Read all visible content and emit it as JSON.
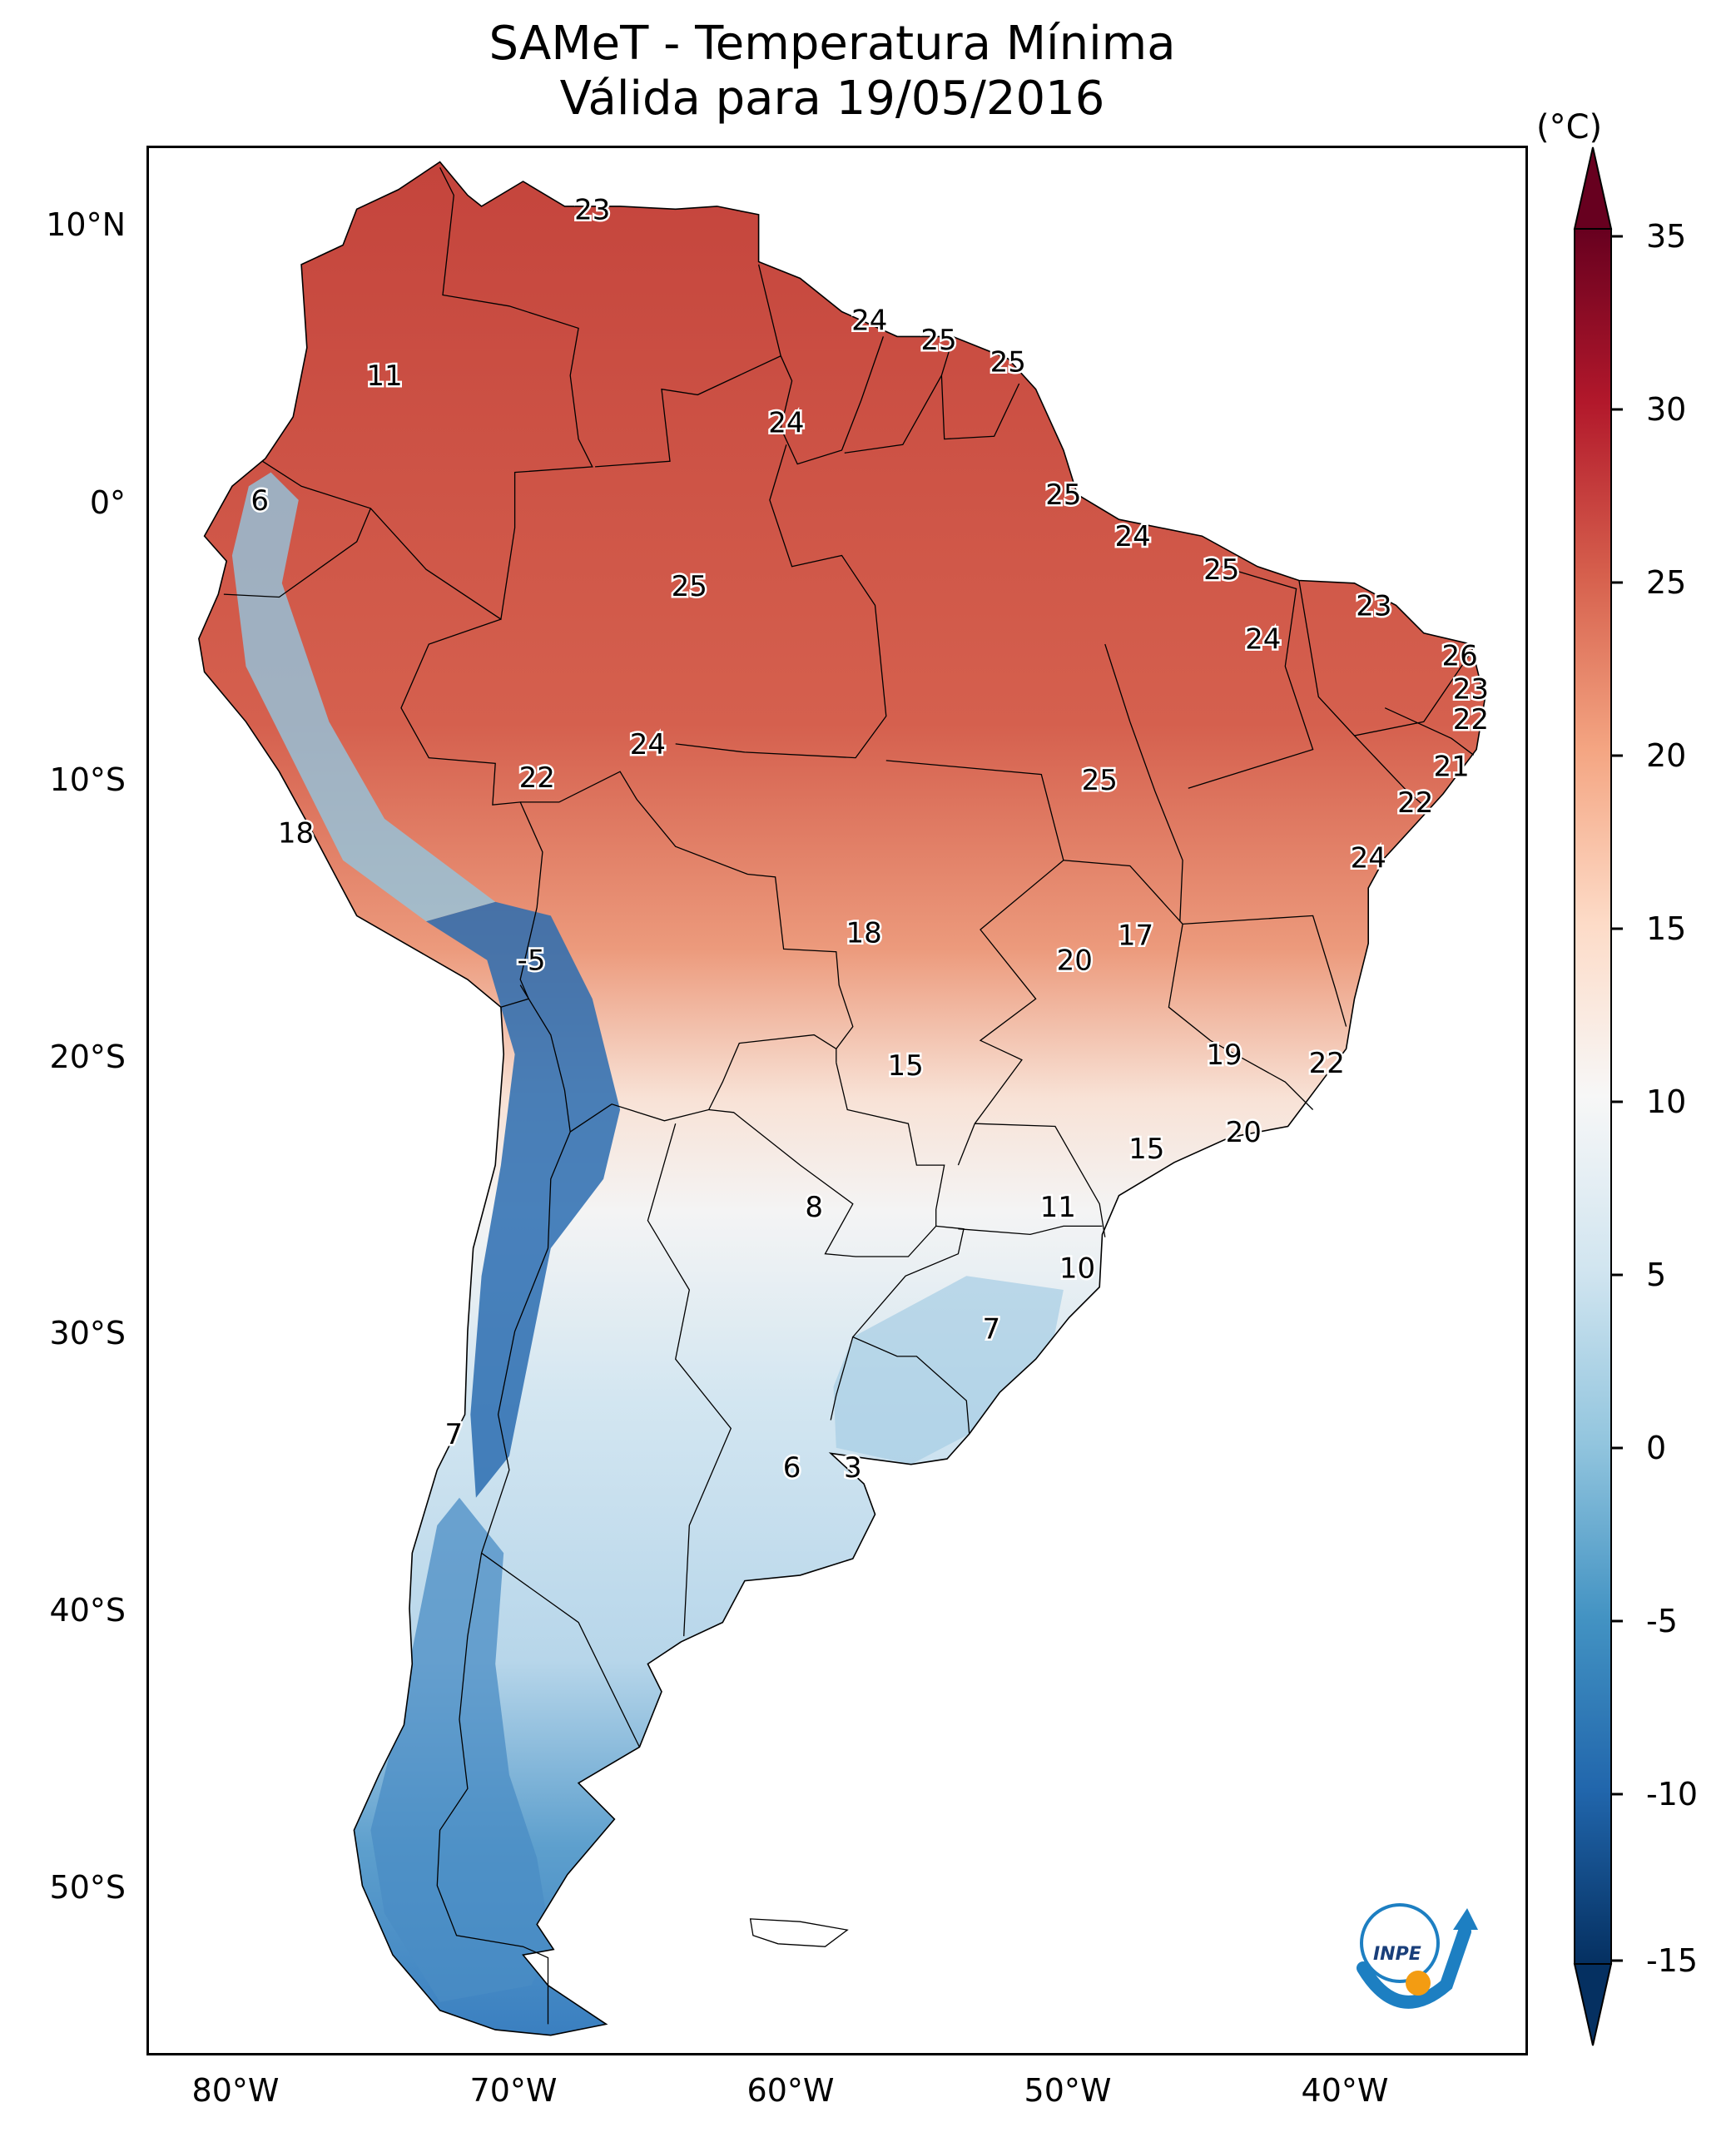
{
  "title": {
    "line1": "SAMeT - Temperatura Mínima",
    "line2": "Válida para 19/05/2016"
  },
  "axes": {
    "lat_ticks": [
      "10°N",
      "0°",
      "10°S",
      "20°S",
      "30°S",
      "40°S",
      "50°S"
    ],
    "lon_ticks": [
      "80°W",
      "70°W",
      "60°W",
      "50°W",
      "40°W"
    ]
  },
  "colorbar": {
    "unit": "(°C)",
    "ticks": [
      "35",
      "30",
      "25",
      "20",
      "15",
      "10",
      "5",
      "0",
      "-5",
      "-10",
      "-15"
    ],
    "range": [
      -15,
      35
    ],
    "colors": [
      "#053061",
      "#2166ac",
      "#4393c3",
      "#92c5de",
      "#d1e5f0",
      "#f7f7f7",
      "#fddbc7",
      "#f4a582",
      "#d6604d",
      "#b2182b",
      "#67001f"
    ]
  },
  "map_labels": [
    {
      "value": "23",
      "lon": -67,
      "lat": 10.5
    },
    {
      "value": "11",
      "lon": -74.5,
      "lat": 4.5
    },
    {
      "value": "24",
      "lon": -57,
      "lat": 6.5
    },
    {
      "value": "25",
      "lon": -54.5,
      "lat": 5.8
    },
    {
      "value": "25",
      "lon": -52,
      "lat": 5
    },
    {
      "value": "24",
      "lon": -60,
      "lat": 2.8
    },
    {
      "value": "6",
      "lon": -79,
      "lat": 0
    },
    {
      "value": "25",
      "lon": -50,
      "lat": 0.2
    },
    {
      "value": "24",
      "lon": -47.5,
      "lat": -1.3
    },
    {
      "value": "25",
      "lon": -63.5,
      "lat": -3.1
    },
    {
      "value": "25",
      "lon": -44.3,
      "lat": -2.5
    },
    {
      "value": "23",
      "lon": -38.8,
      "lat": -3.8
    },
    {
      "value": "24",
      "lon": -42.8,
      "lat": -5
    },
    {
      "value": "26",
      "lon": -35.7,
      "lat": -5.6
    },
    {
      "value": "23",
      "lon": -35.3,
      "lat": -6.8
    },
    {
      "value": "22",
      "lon": -35.3,
      "lat": -7.9
    },
    {
      "value": "24",
      "lon": -65,
      "lat": -8.8
    },
    {
      "value": "22",
      "lon": -69,
      "lat": -10
    },
    {
      "value": "25",
      "lon": -48.7,
      "lat": -10.1
    },
    {
      "value": "21",
      "lon": -36,
      "lat": -9.6
    },
    {
      "value": "22",
      "lon": -37.3,
      "lat": -10.9
    },
    {
      "value": "18",
      "lon": -77.7,
      "lat": -12
    },
    {
      "value": "24",
      "lon": -39,
      "lat": -12.9
    },
    {
      "value": "18",
      "lon": -57.2,
      "lat": -15.6
    },
    {
      "value": "17",
      "lon": -47.4,
      "lat": -15.7
    },
    {
      "value": "20",
      "lon": -49.6,
      "lat": -16.6
    },
    {
      "value": "-5",
      "lon": -69.2,
      "lat": -16.6
    },
    {
      "value": "15",
      "lon": -55.7,
      "lat": -20.4
    },
    {
      "value": "19",
      "lon": -44.2,
      "lat": -20
    },
    {
      "value": "22",
      "lon": -40.5,
      "lat": -20.3
    },
    {
      "value": "20",
      "lon": -43.5,
      "lat": -22.8
    },
    {
      "value": "15",
      "lon": -47,
      "lat": -23.4
    },
    {
      "value": "8",
      "lon": -59,
      "lat": -25.5
    },
    {
      "value": "11",
      "lon": -50.2,
      "lat": -25.5
    },
    {
      "value": "10",
      "lon": -49.5,
      "lat": -27.7
    },
    {
      "value": "7",
      "lon": -52.6,
      "lat": -29.9
    },
    {
      "value": "7",
      "lon": -72,
      "lat": -33.7
    },
    {
      "value": "6",
      "lon": -59.8,
      "lat": -34.9
    },
    {
      "value": "3",
      "lon": -57.6,
      "lat": -34.9
    }
  ],
  "logo": {
    "text": "INPE"
  }
}
